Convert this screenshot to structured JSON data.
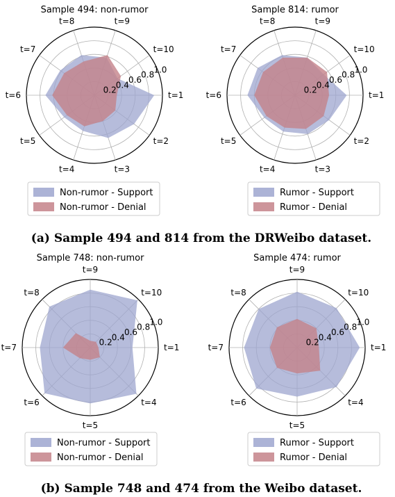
{
  "captions": {
    "a": "(a) Sample 494 and 814 from the DRWeibo dataset.",
    "b": "(b) Sample 748 and 474 from the Weibo dataset."
  },
  "colors": {
    "support": "#9ea6cf",
    "denial": "#c4828a"
  },
  "chart_data": [
    {
      "type": "radar",
      "title": "Sample 494: non-rumor",
      "categories": [
        "t=1",
        "t=2",
        "t=3",
        "t=4",
        "t=5",
        "t=6",
        "t=7",
        "t=8",
        "t=9",
        "t=10"
      ],
      "rlim": [
        0,
        1.0
      ],
      "radial_ticks": [
        "0.2",
        "0.4",
        "0.6",
        "0.8",
        "1.0"
      ],
      "series": [
        {
          "name": "Non-rumor - Support",
          "values": [
            0.88,
            0.72,
            0.66,
            0.55,
            0.55,
            0.72,
            0.62,
            0.62,
            0.58,
            0.42
          ]
        },
        {
          "name": "Non-rumor - Denial",
          "values": [
            0.33,
            0.38,
            0.4,
            0.48,
            0.5,
            0.62,
            0.55,
            0.52,
            0.62,
            0.48
          ]
        }
      ]
    },
    {
      "type": "radar",
      "title": "Sample 814: rumor",
      "categories": [
        "t=1",
        "t=2",
        "t=3",
        "t=4",
        "t=5",
        "t=6",
        "t=7",
        "t=8",
        "t=9",
        "t=10"
      ],
      "rlim": [
        0,
        1.0
      ],
      "radial_ticks": [
        "0.2",
        "0.4",
        "0.6",
        "0.8",
        "1.0"
      ],
      "series": [
        {
          "name": "Rumor - Support",
          "values": [
            0.76,
            0.62,
            0.6,
            0.56,
            0.56,
            0.7,
            0.68,
            0.62,
            0.58,
            0.52
          ]
        },
        {
          "name": "Rumor - Denial",
          "values": [
            0.5,
            0.52,
            0.52,
            0.5,
            0.52,
            0.6,
            0.58,
            0.58,
            0.58,
            0.58
          ]
        }
      ]
    },
    {
      "type": "radar",
      "title": "Sample 748: non-rumor",
      "categories": [
        "t=1",
        "t=4",
        "t=5",
        "t=6",
        "t=7",
        "t=8",
        "t=9",
        "t=10"
      ],
      "rlim": [
        0,
        1.0
      ],
      "radial_ticks": [
        "0.2",
        "0.4",
        "0.6",
        "0.8",
        "1.0"
      ],
      "series": [
        {
          "name": "Non-rumor - Support",
          "values": [
            0.62,
            0.96,
            0.82,
            0.95,
            0.74,
            0.85,
            0.85,
            0.98
          ]
        },
        {
          "name": "Non-rumor - Denial",
          "values": [
            0.12,
            0.2,
            0.18,
            0.22,
            0.4,
            0.3,
            0.1,
            0.12
          ]
        }
      ]
    },
    {
      "type": "radar",
      "title": "Sample 474: rumor",
      "categories": [
        "t=1",
        "t=4",
        "t=5",
        "t=6",
        "t=7",
        "t=8",
        "t=9",
        "t=10"
      ],
      "rlim": [
        0,
        1.0
      ],
      "radial_ticks": [
        "0.2",
        "0.4",
        "0.6",
        "0.8",
        "1.0"
      ],
      "series": [
        {
          "name": "Rumor - Support",
          "values": [
            0.92,
            0.82,
            0.72,
            0.85,
            0.78,
            0.8,
            0.82,
            0.82
          ]
        },
        {
          "name": "Rumor - Denial",
          "values": [
            0.32,
            0.48,
            0.38,
            0.42,
            0.4,
            0.42,
            0.42,
            0.4
          ]
        }
      ]
    }
  ]
}
